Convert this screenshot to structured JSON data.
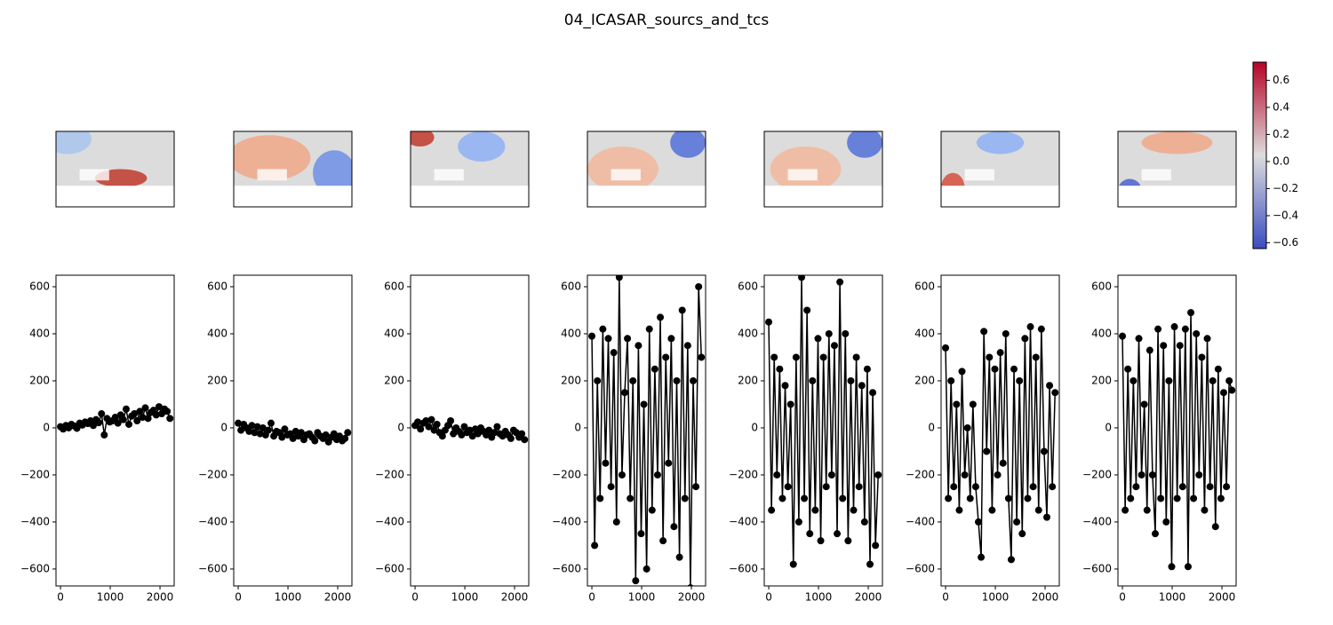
{
  "chart_data": [
    {
      "type": "line",
      "title": "04_ICASAR_sourcs_and_tcs",
      "x": [
        0,
        55,
        110,
        165,
        220,
        275,
        330,
        385,
        440,
        495,
        550,
        605,
        660,
        715,
        770,
        825,
        880,
        935,
        990,
        1045,
        1100,
        1155,
        1210,
        1265,
        1320,
        1375,
        1430,
        1485,
        1540,
        1595,
        1650,
        1705,
        1760,
        1815,
        1870,
        1925,
        1980,
        2035,
        2090,
        2145,
        2200
      ],
      "xlim": [
        -90,
        2285
      ],
      "xticks": [
        0,
        1000,
        2000
      ],
      "ylim": [
        -672,
        649
      ],
      "yticks": [
        {
          "value": -600,
          "label": "−600"
        },
        {
          "value": -400,
          "label": "−400"
        },
        {
          "value": -200,
          "label": "−200"
        },
        0,
        200,
        400,
        600
      ],
      "series": [
        {
          "color": "#000000",
          "values": [
            5,
            -5,
            10,
            0,
            15,
            8,
            -2,
            20,
            12,
            25,
            18,
            30,
            10,
            35,
            22,
            60,
            -30,
            40,
            25,
            30,
            45,
            20,
            55,
            35,
            80,
            15,
            50,
            60,
            30,
            70,
            45,
            85,
            40,
            65,
            75,
            55,
            90,
            60,
            80,
            70,
            40
          ]
        },
        {
          "color": "#000000",
          "values": [
            20,
            -10,
            15,
            0,
            -15,
            10,
            -20,
            5,
            -25,
            0,
            -30,
            -10,
            20,
            -35,
            -15,
            -20,
            -40,
            -5,
            -30,
            -25,
            -45,
            -15,
            -35,
            -20,
            -50,
            -30,
            -25,
            -40,
            -55,
            -20,
            -35,
            -45,
            -30,
            -60,
            -40,
            -25,
            -50,
            -35,
            -55,
            -45,
            -20
          ]
        },
        {
          "color": "#000000",
          "values": [
            10,
            25,
            -5,
            20,
            30,
            5,
            35,
            -10,
            15,
            -20,
            -35,
            -10,
            10,
            30,
            -25,
            0,
            -15,
            -30,
            5,
            -20,
            -10,
            -35,
            -5,
            -25,
            0,
            -15,
            -30,
            -10,
            -40,
            -20,
            5,
            -25,
            -35,
            -15,
            -30,
            -45,
            -10,
            -20,
            -40,
            -25,
            -50
          ]
        },
        {
          "color": "#000000",
          "values": [
            390,
            -500,
            200,
            -300,
            420,
            -150,
            380,
            -250,
            320,
            -400,
            640,
            -200,
            150,
            380,
            -300,
            200,
            -650,
            350,
            -450,
            100,
            -600,
            420,
            -350,
            250,
            -200,
            470,
            -480,
            300,
            -150,
            380,
            -420,
            200,
            -550,
            500,
            -300,
            350,
            -680,
            200,
            -250,
            600,
            300
          ]
        },
        {
          "color": "#000000",
          "values": [
            450,
            -350,
            300,
            -200,
            250,
            -300,
            180,
            -250,
            100,
            -580,
            300,
            -400,
            640,
            -300,
            500,
            -450,
            200,
            -350,
            380,
            -480,
            300,
            -250,
            400,
            -200,
            350,
            -450,
            620,
            -300,
            400,
            -480,
            200,
            -350,
            300,
            -250,
            180,
            -400,
            250,
            -580,
            150,
            -500,
            -200
          ]
        },
        {
          "color": "#000000",
          "values": [
            340,
            -300,
            200,
            -250,
            100,
            -350,
            240,
            -200,
            0,
            -300,
            100,
            -250,
            -400,
            -550,
            410,
            -100,
            300,
            -350,
            250,
            -200,
            320,
            -150,
            400,
            -300,
            -560,
            250,
            -400,
            200,
            -450,
            380,
            -300,
            430,
            -250,
            300,
            -350,
            420,
            -100,
            -380,
            180,
            -250,
            150
          ]
        },
        {
          "color": "#000000",
          "values": [
            390,
            -350,
            250,
            -300,
            200,
            -250,
            380,
            -200,
            100,
            -350,
            330,
            -200,
            -450,
            420,
            -300,
            350,
            -400,
            200,
            -590,
            430,
            -300,
            350,
            -250,
            420,
            -590,
            490,
            -300,
            400,
            -200,
            300,
            -350,
            380,
            -250,
            200,
            -420,
            250,
            -300,
            150,
            -250,
            200,
            160
          ]
        }
      ]
    },
    {
      "type": "colorbar",
      "clim": [
        -0.643,
        0.734
      ],
      "colors": [
        "#3b4cc0",
        "#dddddd",
        "#b40426"
      ],
      "ticks": [
        {
          "value": -0.6,
          "label": "−0.6"
        },
        {
          "value": -0.4,
          "label": "−0.4"
        },
        {
          "value": -0.2,
          "label": "−0.2"
        },
        {
          "value": 0,
          "label": "0.0"
        },
        0.2,
        0.4,
        0.6
      ]
    }
  ]
}
